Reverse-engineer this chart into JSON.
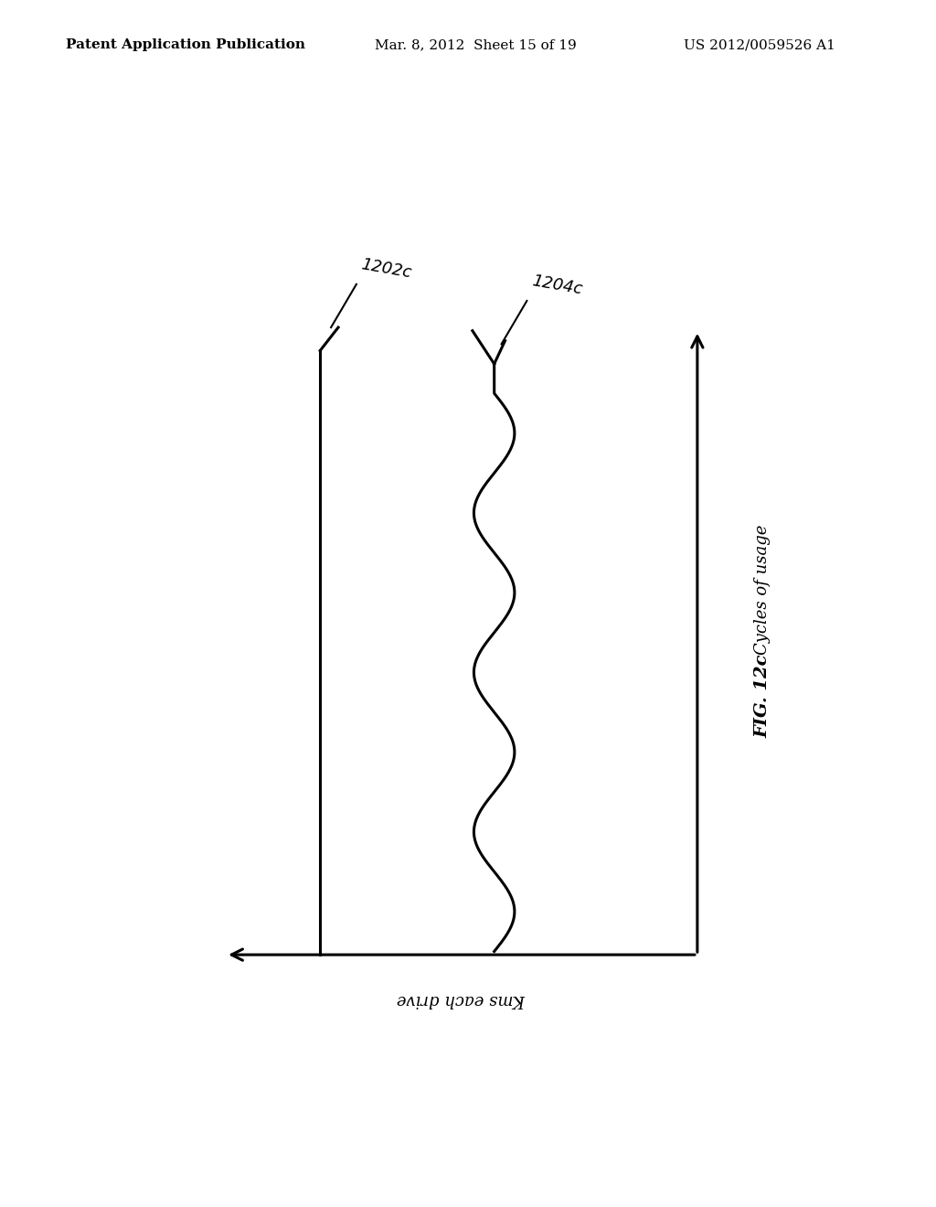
{
  "header_left": "Patent Application Publication",
  "header_middle": "Mar. 8, 2012  Sheet 15 of 19",
  "header_right": "US 2012/0059526 A1",
  "label_1202c": "1202c",
  "label_1204c": "1204c",
  "ylabel": "Cycles of usage",
  "xlabel": "Kms each drive",
  "fig_label": "FIG. 12c",
  "background_color": "#ffffff",
  "line_color": "#000000",
  "header_fontsize": 11,
  "label_fontsize": 13,
  "axis_label_fontsize": 13,
  "fig_label_fontsize": 14
}
